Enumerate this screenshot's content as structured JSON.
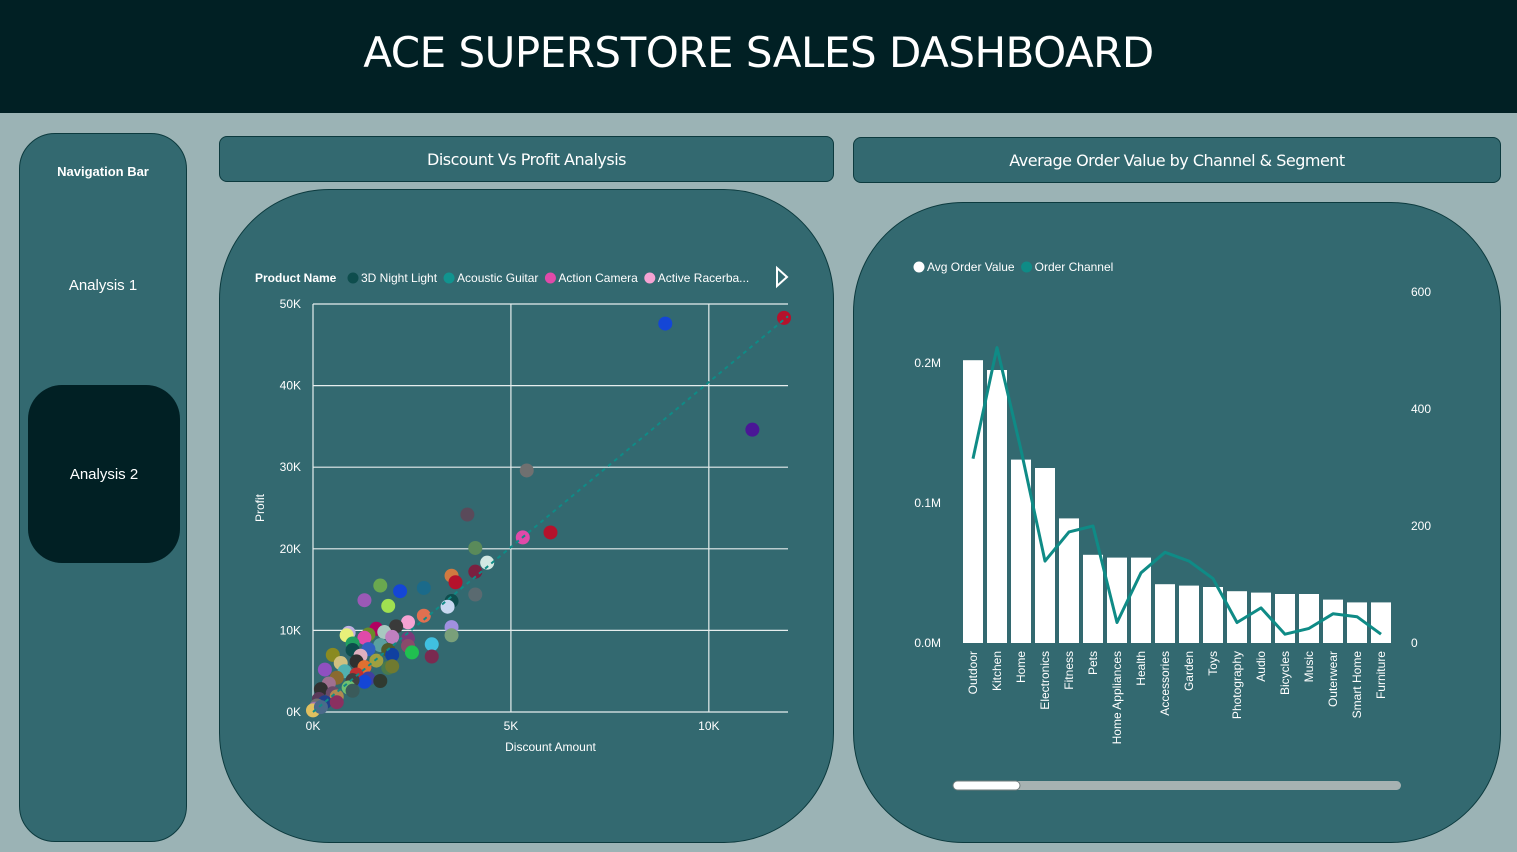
{
  "header": {
    "title": "ACE SUPERSTORE SALES DASHBOARD"
  },
  "nav": {
    "title": "Navigation Bar",
    "items": [
      {
        "label": "Analysis 1"
      },
      {
        "label": "Analysis 2"
      }
    ]
  },
  "scatter_card": {
    "title": "Discount Vs Profit Analysis"
  },
  "combo_card": {
    "title": "Average Order Value by Channel & Segment"
  },
  "colors": {
    "header_bg": "#012024",
    "panel_bg": "#336970",
    "page_bg": "#9bb3b5",
    "line": "#0f8b86",
    "bar": "#ffffff"
  },
  "chart_data": [
    {
      "type": "scatter",
      "legend_title": "Product Name",
      "legend": [
        {
          "name": "3D Night Light",
          "color": "#0e4d4d"
        },
        {
          "name": "Acoustic Guitar",
          "color": "#11948f"
        },
        {
          "name": "Action Camera",
          "color": "#e04aa9"
        },
        {
          "name": "Active Racerba...",
          "color": "#f5a3d3"
        }
      ],
      "legend_more_icon": "play-right-icon",
      "xlabel": "Discount Amount",
      "ylabel": "Profit",
      "xlim": [
        0,
        12000
      ],
      "ylim": [
        0,
        50000
      ],
      "xticks": [
        {
          "v": 0,
          "label": "0K"
        },
        {
          "v": 5000,
          "label": "5K"
        },
        {
          "v": 10000,
          "label": "10K"
        }
      ],
      "yticks": [
        {
          "v": 0,
          "label": "0K"
        },
        {
          "v": 10000,
          "label": "10K"
        },
        {
          "v": 20000,
          "label": "20K"
        },
        {
          "v": 30000,
          "label": "30K"
        },
        {
          "v": 40000,
          "label": "40K"
        },
        {
          "v": 50000,
          "label": "50K"
        }
      ],
      "trend_line": {
        "x": [
          0,
          12000
        ],
        "y": [
          0,
          48500
        ]
      },
      "points": [
        {
          "x": 8900,
          "y": 47600,
          "c": "#1446d6"
        },
        {
          "x": 11900,
          "y": 48300,
          "c": "#b5122c"
        },
        {
          "x": 11100,
          "y": 34600,
          "c": "#4a1796"
        },
        {
          "x": 5400,
          "y": 29600,
          "c": "#707070"
        },
        {
          "x": 6000,
          "y": 22000,
          "c": "#b5122c"
        },
        {
          "x": 5300,
          "y": 21400,
          "c": "#e04aa9"
        },
        {
          "x": 3900,
          "y": 24200,
          "c": "#5a4a5a"
        },
        {
          "x": 4100,
          "y": 20100,
          "c": "#5a8a5a"
        },
        {
          "x": 4400,
          "y": 18300,
          "c": "#d2e8e2"
        },
        {
          "x": 4100,
          "y": 17200,
          "c": "#7a2040"
        },
        {
          "x": 3500,
          "y": 16700,
          "c": "#d07a40"
        },
        {
          "x": 3600,
          "y": 15900,
          "c": "#b5122c"
        },
        {
          "x": 1700,
          "y": 15500,
          "c": "#6aa84f"
        },
        {
          "x": 2800,
          "y": 15200,
          "c": "#1b6a8a"
        },
        {
          "x": 2200,
          "y": 14800,
          "c": "#1446d6"
        },
        {
          "x": 1300,
          "y": 13700,
          "c": "#9b59b6"
        },
        {
          "x": 1900,
          "y": 13000,
          "c": "#a0e050"
        },
        {
          "x": 3500,
          "y": 13600,
          "c": "#0e4d4d"
        },
        {
          "x": 3400,
          "y": 12900,
          "c": "#c8d8f0"
        },
        {
          "x": 4100,
          "y": 14400,
          "c": "#5a6a70"
        },
        {
          "x": 2800,
          "y": 11800,
          "c": "#e07050"
        },
        {
          "x": 2400,
          "y": 11000,
          "c": "#f5a3d3"
        },
        {
          "x": 1600,
          "y": 10200,
          "c": "#b00060"
        },
        {
          "x": 2100,
          "y": 10500,
          "c": "#3a3a3a"
        },
        {
          "x": 3500,
          "y": 10400,
          "c": "#a090e0"
        },
        {
          "x": 900,
          "y": 9700,
          "c": "#c0b0e0"
        },
        {
          "x": 850,
          "y": 9400,
          "c": "#e8f07a"
        },
        {
          "x": 1400,
          "y": 9500,
          "c": "#6a8a2a"
        },
        {
          "x": 1800,
          "y": 9800,
          "c": "#a8c8c0"
        },
        {
          "x": 1300,
          "y": 9100,
          "c": "#e04aa9"
        },
        {
          "x": 2000,
          "y": 9200,
          "c": "#c080c0"
        },
        {
          "x": 2400,
          "y": 9000,
          "c": "#7a3a7a"
        },
        {
          "x": 3000,
          "y": 8300,
          "c": "#40c0e0"
        },
        {
          "x": 3500,
          "y": 9400,
          "c": "#7aa07a"
        },
        {
          "x": 1000,
          "y": 8400,
          "c": "#20a060"
        },
        {
          "x": 1700,
          "y": 8200,
          "c": "#5aa0a0"
        },
        {
          "x": 2400,
          "y": 8100,
          "c": "#8a4a6a"
        },
        {
          "x": 1000,
          "y": 7600,
          "c": "#0e4d4d"
        },
        {
          "x": 1400,
          "y": 7700,
          "c": "#3060c0"
        },
        {
          "x": 1900,
          "y": 7600,
          "c": "#505a2a"
        },
        {
          "x": 500,
          "y": 7000,
          "c": "#8a8a20"
        },
        {
          "x": 1200,
          "y": 6900,
          "c": "#e0b0c0"
        },
        {
          "x": 2000,
          "y": 7000,
          "c": "#1040a0"
        },
        {
          "x": 2500,
          "y": 7300,
          "c": "#20c050"
        },
        {
          "x": 3000,
          "y": 6800,
          "c": "#7a2a50"
        },
        {
          "x": 1100,
          "y": 6200,
          "c": "#303030"
        },
        {
          "x": 1600,
          "y": 6300,
          "c": "#a0a040"
        },
        {
          "x": 700,
          "y": 6000,
          "c": "#d0c080"
        },
        {
          "x": 300,
          "y": 5200,
          "c": "#9050c0"
        },
        {
          "x": 1300,
          "y": 5500,
          "c": "#e07030"
        },
        {
          "x": 1900,
          "y": 5400,
          "c": "#4a7a4a"
        },
        {
          "x": 2000,
          "y": 5600,
          "c": "#707a30"
        },
        {
          "x": 800,
          "y": 5000,
          "c": "#50b0b0"
        },
        {
          "x": 1100,
          "y": 4600,
          "c": "#c03030"
        },
        {
          "x": 600,
          "y": 4200,
          "c": "#8a6a30"
        },
        {
          "x": 1400,
          "y": 4100,
          "c": "#4040a0"
        },
        {
          "x": 1300,
          "y": 3700,
          "c": "#1446d6"
        },
        {
          "x": 1000,
          "y": 3900,
          "c": "#404040"
        },
        {
          "x": 1700,
          "y": 3800,
          "c": "#303a30"
        },
        {
          "x": 400,
          "y": 3500,
          "c": "#a07090"
        },
        {
          "x": 900,
          "y": 3000,
          "c": "#70c070"
        },
        {
          "x": 1000,
          "y": 2600,
          "c": "#3a5a5a"
        },
        {
          "x": 200,
          "y": 2800,
          "c": "#303030"
        },
        {
          "x": 500,
          "y": 2300,
          "c": "#6a4a6a"
        },
        {
          "x": 600,
          "y": 1900,
          "c": "#b08a50"
        },
        {
          "x": 150,
          "y": 1600,
          "c": "#5a3a5a"
        },
        {
          "x": 300,
          "y": 1200,
          "c": "#20408a"
        },
        {
          "x": 100,
          "y": 800,
          "c": "#707070"
        },
        {
          "x": 50,
          "y": 400,
          "c": "#a070b0"
        },
        {
          "x": 0,
          "y": 200,
          "c": "#e0c060"
        },
        {
          "x": 200,
          "y": 600,
          "c": "#4a6a8a"
        },
        {
          "x": 600,
          "y": 1200,
          "c": "#8a3060"
        }
      ]
    },
    {
      "type": "bar",
      "legend": [
        {
          "name": "Avg Order Value",
          "color": "#ffffff"
        },
        {
          "name": "Order Channel",
          "color": "#0f8b86"
        }
      ],
      "categories": [
        "Outdoor",
        "Kitchen",
        "Home",
        "Electronics",
        "Fitness",
        "Pets",
        "Home Appliances",
        "Health",
        "Accessories",
        "Garden",
        "Toys",
        "Photography",
        "Audio",
        "Bicycles",
        "Music",
        "Outerwear",
        "Smart Home",
        "Furniture"
      ],
      "bar_values": [
        202000,
        195000,
        131000,
        125000,
        89000,
        63000,
        61000,
        61000,
        42000,
        41000,
        40000,
        37000,
        36000,
        35000,
        35000,
        31000,
        29000,
        29000
      ],
      "line_values": [
        315,
        505,
        330,
        140,
        190,
        200,
        35,
        120,
        155,
        140,
        110,
        35,
        60,
        15,
        25,
        50,
        45,
        15
      ],
      "ylim_left": [
        0,
        200000
      ],
      "yticks_left": [
        {
          "v": 0,
          "label": "0.0M"
        },
        {
          "v": 100000,
          "label": "0.1M"
        },
        {
          "v": 200000,
          "label": "0.2M"
        }
      ],
      "ylim_right": [
        0,
        600
      ],
      "yticks_right": [
        {
          "v": 0,
          "label": "0"
        },
        {
          "v": 200,
          "label": "200"
        },
        {
          "v": 400,
          "label": "400"
        },
        {
          "v": 600,
          "label": "600"
        }
      ],
      "scrollbar_position": 0
    }
  ]
}
